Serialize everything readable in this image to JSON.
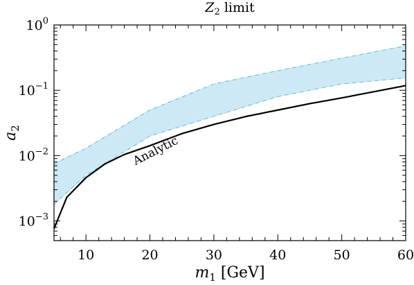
{
  "chart_data": {
    "type": "area",
    "title": "Z",
    "title_subscript": "2",
    "title_suffix": " limit",
    "xlabel": "m",
    "xlabel_subscript": "1",
    "xlabel_unit": " [GeV]",
    "ylabel": "a",
    "ylabel_subscript": "2",
    "xlim": [
      5,
      60
    ],
    "ylim": [
      0.0005,
      1
    ],
    "yscale": "log",
    "grid": false,
    "xticks": [
      10,
      20,
      30,
      40,
      50,
      60
    ],
    "xtick_labels": [
      "10",
      "20",
      "30",
      "40",
      "50",
      "60"
    ],
    "yticks": [
      {
        "value": 0.001,
        "base": "10",
        "exp": "−3"
      },
      {
        "value": 0.01,
        "base": "10",
        "exp": "−2"
      },
      {
        "value": 0.1,
        "base": "10",
        "exp": "−1"
      },
      {
        "value": 1,
        "base": "10",
        "exp": "0"
      }
    ],
    "band": {
      "color": "#cde9f5",
      "edge_color": "#62b4cf",
      "x": [
        5,
        10,
        20,
        30,
        40,
        50,
        60
      ],
      "upper": [
        0.0075,
        0.013,
        0.05,
        0.125,
        0.2,
        0.31,
        0.48
      ],
      "lower": [
        0.0018,
        0.005,
        0.02,
        0.04,
        0.08,
        0.125,
        0.155
      ]
    },
    "series": [
      {
        "name": "Analytic",
        "color": "#000000",
        "x": [
          5,
          7,
          10,
          13,
          16,
          20,
          25,
          30,
          35,
          40,
          45,
          50,
          55,
          60
        ],
        "y": [
          0.00076,
          0.0023,
          0.0046,
          0.0075,
          0.0104,
          0.0142,
          0.0217,
          0.03,
          0.0397,
          0.0498,
          0.0625,
          0.0765,
          0.095,
          0.118
        ]
      }
    ],
    "annotation": {
      "text": "Analytic",
      "x": 21,
      "y": 0.016,
      "angle_deg": -27
    }
  }
}
